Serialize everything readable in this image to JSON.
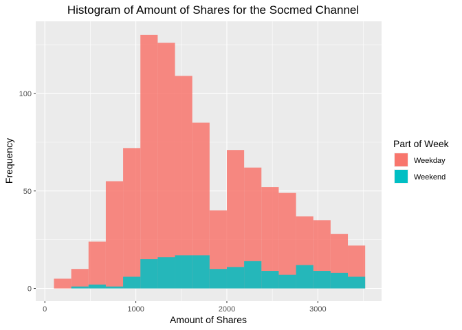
{
  "chart_data": {
    "type": "histogram",
    "title": "Histogram of Amount of Shares for the Socmed Channel",
    "xlabel": "Amount of Shares",
    "ylabel": "Frequency",
    "xlim": [
      -100,
      3700
    ],
    "ylim": [
      -6.5,
      137
    ],
    "x_ticks": [
      0,
      1000,
      2000,
      3000
    ],
    "x_tick_labels": [
      "0",
      "1000",
      "2000",
      "3000"
    ],
    "y_ticks": [
      0,
      50,
      100
    ],
    "y_tick_labels": [
      "0",
      "50",
      "100"
    ],
    "bin_edges": [
      100,
      290,
      480,
      670,
      860,
      1050,
      1240,
      1430,
      1620,
      1810,
      2000,
      2190,
      2380,
      2570,
      2760,
      2950,
      3140,
      3330,
      3520
    ],
    "grid": true,
    "legend": {
      "title": "Part of Week",
      "position": "right"
    },
    "series": [
      {
        "name": "Weekday",
        "color": "#F8766D",
        "values": [
          5,
          10,
          24,
          55,
          72,
          130,
          126,
          109,
          85,
          40,
          71,
          62,
          52,
          49,
          37,
          35,
          28,
          22
        ]
      },
      {
        "name": "Weekend",
        "color": "#00BFC4",
        "values": [
          0,
          1,
          2,
          1,
          6,
          15,
          16,
          17,
          17,
          10,
          11,
          14,
          9,
          7,
          12,
          9,
          8,
          6
        ]
      }
    ]
  }
}
